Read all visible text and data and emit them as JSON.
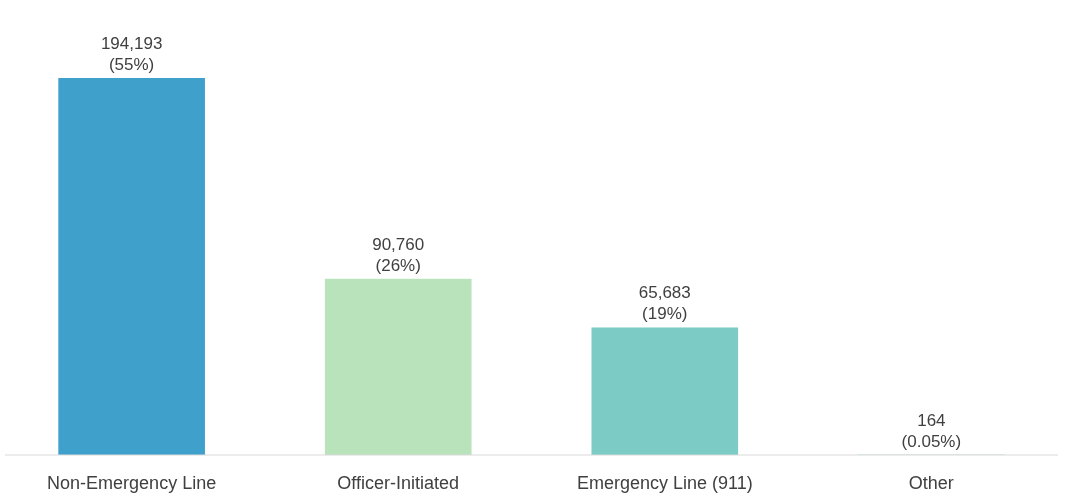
{
  "chart_data": {
    "type": "bar",
    "categories": [
      "Non-Emergency Line",
      "Officer-Initiated",
      "Emergency Line (911)",
      "Other"
    ],
    "values": [
      194193,
      90760,
      65683,
      164
    ],
    "colors": [
      "#3fa0cb",
      "#b9e3bb",
      "#7ccbc4",
      "#7ccbc4"
    ],
    "value_labels": [
      "194,193 (55%)",
      "90,760 (26%)",
      "65,683 (19%)",
      "164 (0.05%)"
    ]
  }
}
